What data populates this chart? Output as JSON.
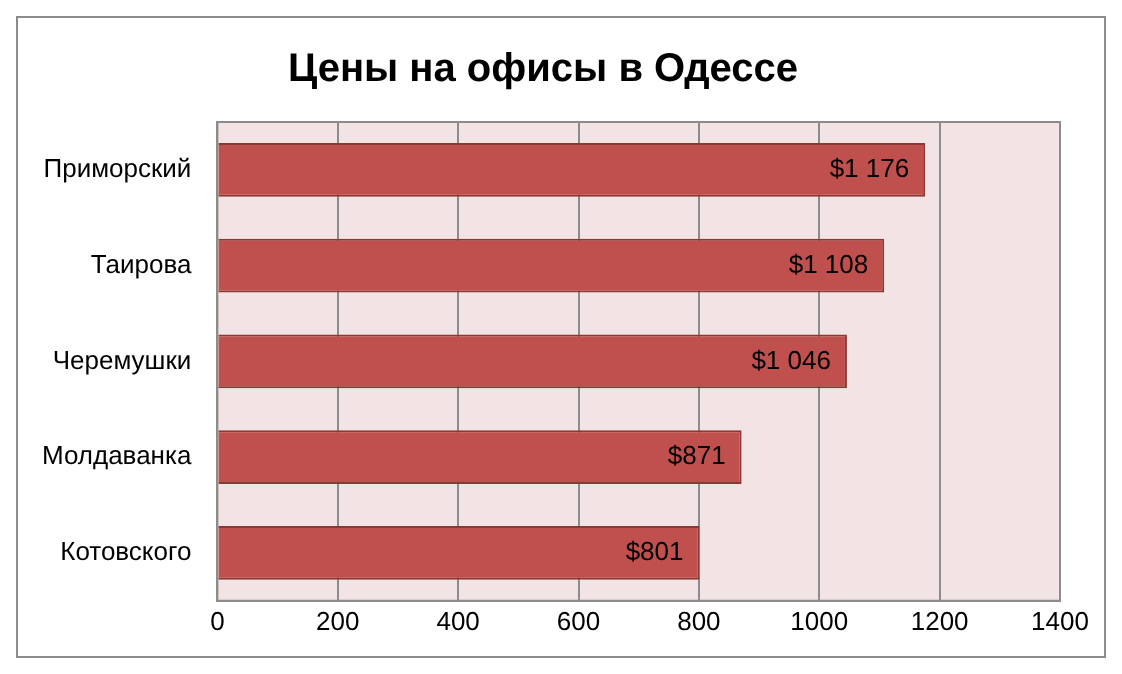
{
  "chart_data": {
    "type": "bar",
    "orientation": "horizontal",
    "title": "Цены на офисы в Одессе",
    "categories": [
      "Приморский",
      "Таирова",
      "Черемушки",
      "Молдаванка",
      "Котовского"
    ],
    "values": [
      1176,
      1108,
      1046,
      871,
      801
    ],
    "value_labels": [
      "$1 176",
      "$1 108",
      "$1 046",
      "$871",
      "$801"
    ],
    "color": "#c0504d",
    "xlim": [
      0,
      1400
    ],
    "xticks": [
      0,
      200,
      400,
      600,
      800,
      1000,
      1200,
      1400
    ],
    "grid": "x",
    "legend": false
  }
}
